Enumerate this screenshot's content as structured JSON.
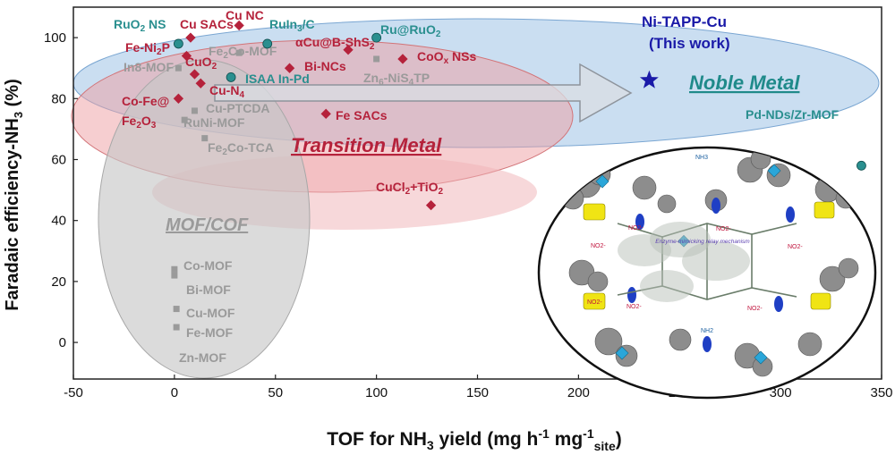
{
  "chart_data": {
    "type": "scatter",
    "xlabel": "TOF for NH3 yield (mg h-1 mg-1site)",
    "ylabel": "Faradaic efficiency-NH3 (%)",
    "xlim": [
      -50,
      350
    ],
    "ylim": [
      -12,
      110
    ],
    "x_ticks": [
      -50,
      0,
      50,
      100,
      150,
      200,
      250,
      300,
      350
    ],
    "y_ticks": [
      0,
      20,
      40,
      60,
      80,
      100
    ],
    "grid": false,
    "regions": [
      {
        "name": "Noble Metal",
        "color": "#8fb9df"
      },
      {
        "name": "Transition Metal",
        "color": "#e58e92"
      },
      {
        "name": "MOF/COF",
        "color": "#bdbdbd"
      }
    ],
    "points": [
      {
        "label": "RuO2 NS",
        "x": 2,
        "y": 98,
        "group": "noble",
        "color": "#2a8f8f"
      },
      {
        "label": "Cu SACs",
        "x": 8,
        "y": 100,
        "group": "transition",
        "color": "#b5223b"
      },
      {
        "label": "Cu NC",
        "x": 32,
        "y": 104,
        "group": "transition",
        "color": "#b5223b"
      },
      {
        "label": "RuIn3/C",
        "x": 46,
        "y": 98,
        "group": "noble",
        "color": "#2a8f8f"
      },
      {
        "label": "Ru@RuO2",
        "x": 100,
        "y": 100,
        "group": "noble",
        "color": "#2a8f8f"
      },
      {
        "label": "Fe-Ni2P",
        "x": 6,
        "y": 94,
        "group": "transition",
        "color": "#b5223b"
      },
      {
        "label": "Fe2Co-MOF",
        "x": 32,
        "y": 95,
        "group": "mof",
        "color": "#9a9a9a"
      },
      {
        "label": "αCu@B-ShS2",
        "x": 86,
        "y": 96,
        "group": "transition",
        "color": "#b5223b"
      },
      {
        "label": "In8-MOF",
        "x": 2,
        "y": 90,
        "group": "mof",
        "color": "#9a9a9a"
      },
      {
        "label": "CuO2",
        "x": 10,
        "y": 88,
        "group": "transition",
        "color": "#b5223b"
      },
      {
        "label": "CoOx NSs",
        "x": 113,
        "y": 93,
        "group": "transition",
        "color": "#b5223b"
      },
      {
        "label": "Bi-NCs",
        "x": 57,
        "y": 90,
        "group": "transition",
        "color": "#b5223b"
      },
      {
        "label": "ISAA In-Pd",
        "x": 28,
        "y": 87,
        "group": "noble",
        "color": "#2a8f8f"
      },
      {
        "label": "Zn6-NiS4TP",
        "x": 100,
        "y": 93,
        "group": "mof",
        "color": "#9a9a9a"
      },
      {
        "label": "Cu-N4",
        "x": 13,
        "y": 85,
        "group": "transition",
        "color": "#b5223b"
      },
      {
        "label": "Co-Fe@Fe2O3",
        "x": 2,
        "y": 80,
        "group": "transition",
        "color": "#b5223b"
      },
      {
        "label": "Cu-PTCDA",
        "x": 10,
        "y": 76,
        "group": "mof",
        "color": "#9a9a9a"
      },
      {
        "label": "RuNi-MOF",
        "x": 5,
        "y": 73,
        "group": "mof",
        "color": "#9a9a9a"
      },
      {
        "label": "Fe SACs",
        "x": 75,
        "y": 75,
        "group": "transition",
        "color": "#b5223b"
      },
      {
        "label": "Fe2Co-TCA",
        "x": 15,
        "y": 67,
        "group": "mof",
        "color": "#9a9a9a"
      },
      {
        "label": "CuCl2+TiO2",
        "x": 127,
        "y": 45,
        "group": "transition",
        "color": "#b5223b"
      },
      {
        "label": "Pd-NDs/Zr-MOF",
        "x": 340,
        "y": 58,
        "group": "noble",
        "color": "#2a8f8f"
      },
      {
        "label": "Co-MOF",
        "x": 0,
        "y": 24,
        "group": "mof",
        "color": "#9a9a9a"
      },
      {
        "label": "Bi-MOF",
        "x": 0,
        "y": 22,
        "group": "mof",
        "color": "#9a9a9a"
      },
      {
        "label": "Cu-MOF",
        "x": 1,
        "y": 11,
        "group": "mof",
        "color": "#9a9a9a"
      },
      {
        "label": "Fe-MOF",
        "x": 1,
        "y": 5,
        "group": "mof",
        "color": "#9a9a9a"
      },
      {
        "label": "Ni-TAPP-Cu (This work)",
        "x": 235,
        "y": 86,
        "group": "this-work",
        "color": "#1a1aa8"
      }
    ],
    "annotations": [
      "Zn-MOF"
    ]
  },
  "labels": {
    "this_work_line1": "Ni-TAPP-Cu",
    "this_work_line2": "(This work)",
    "noble_metal": "Noble Metal",
    "transition_metal": "Transition Metal",
    "mof_cof": "MOF/COF",
    "inset_nh3_top": "NH3",
    "inset_nh3_bottom": "NH2",
    "inset_no2": "NO2-",
    "inset_caption": "Enzyme-mimicking relay mechanism"
  }
}
